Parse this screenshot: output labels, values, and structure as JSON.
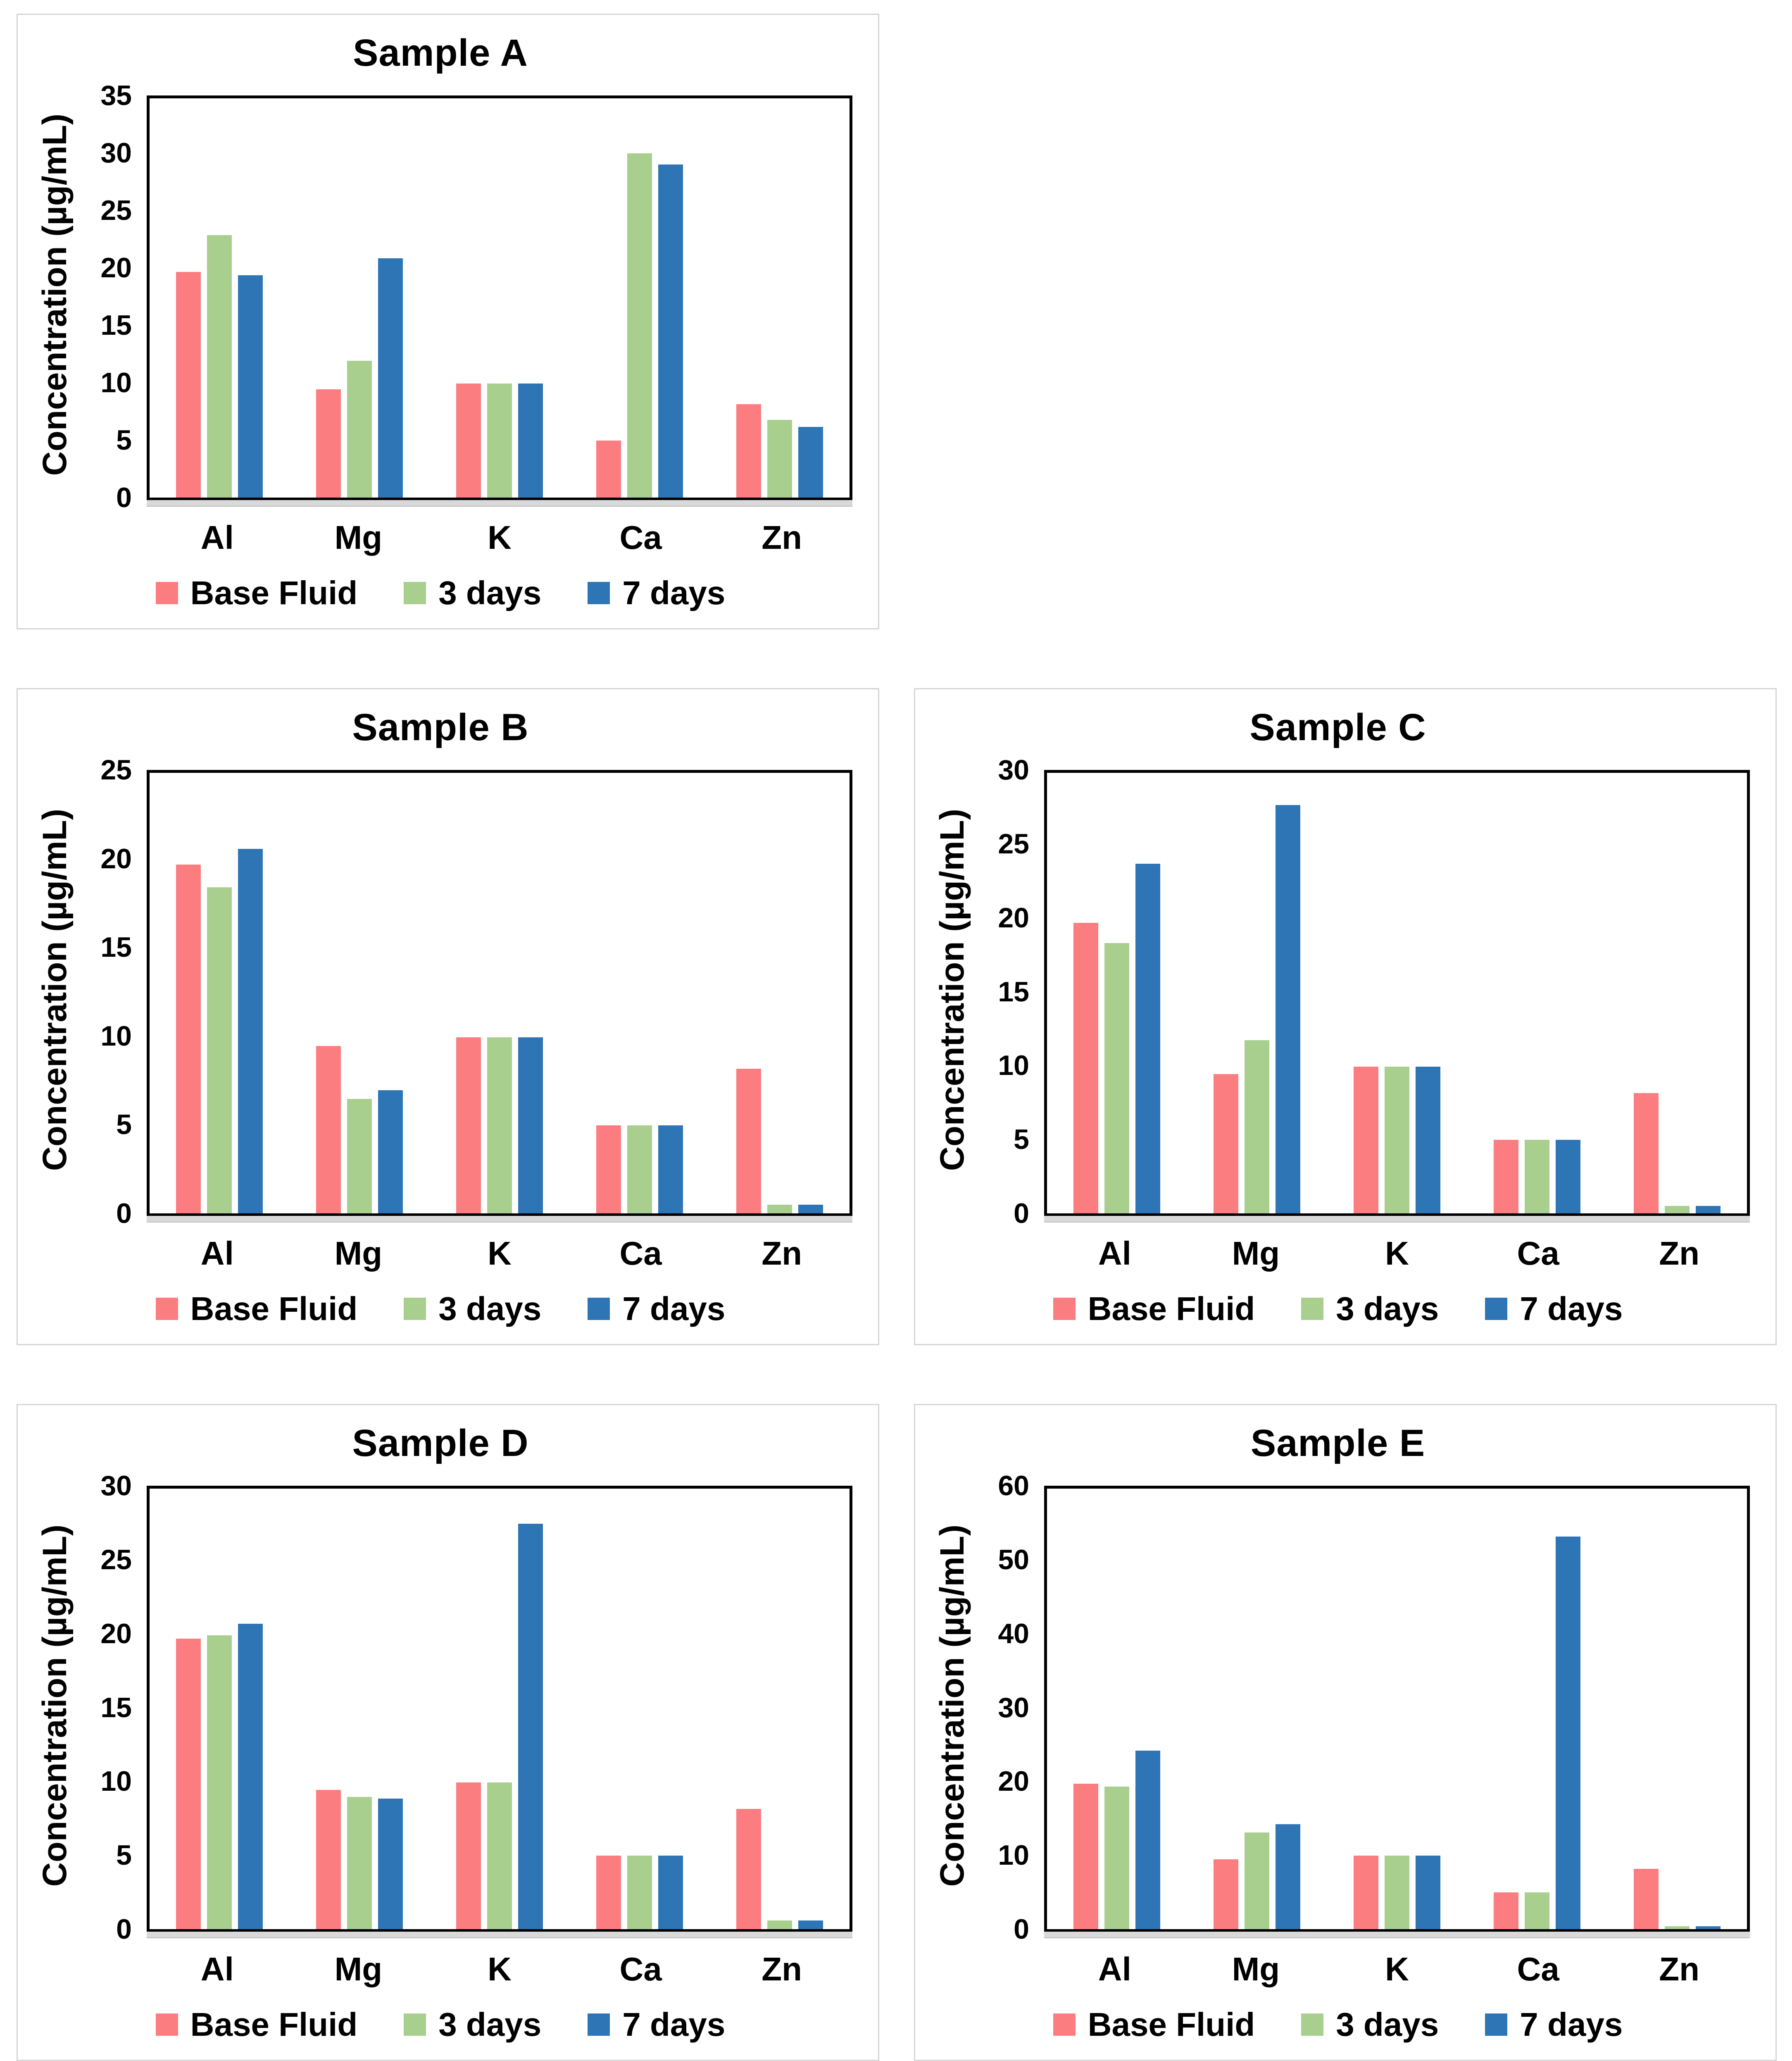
{
  "figure_title": "",
  "colors": {
    "base_fluid": "#FB7D80",
    "three_days": "#A8CF8E",
    "seven_days": "#2E75B5",
    "axis": "#000000",
    "axis_strip": "#D9D9D9",
    "panel_border": "#D5D5D5"
  },
  "chart_data": [
    {
      "type": "bar",
      "title": "Sample A",
      "ylabel": "Concentration (µg/mL)",
      "xlabel": "",
      "categories": [
        "Al",
        "Mg",
        "K",
        "Ca",
        "Zn"
      ],
      "ylim": [
        0,
        35
      ],
      "ytick_step": 5,
      "grid": false,
      "legend_position": "bottom",
      "series": [
        {
          "name": "Base Fluid",
          "color": "#FB7D80",
          "values": [
            19.8,
            9.5,
            10,
            5,
            8.2
          ]
        },
        {
          "name": "3 days",
          "color": "#A8CF8E",
          "values": [
            23,
            12,
            10,
            30.2,
            6.8
          ]
        },
        {
          "name": "7 days",
          "color": "#2E75B5",
          "values": [
            19.5,
            21,
            10,
            29.2,
            6.2
          ]
        }
      ]
    },
    {
      "type": "bar",
      "title": "Sample B",
      "ylabel": "Concentration (µg/mL)",
      "xlabel": "",
      "categories": [
        "Al",
        "Mg",
        "K",
        "Ca",
        "Zn"
      ],
      "ylim": [
        0,
        25
      ],
      "ytick_step": 5,
      "grid": false,
      "legend_position": "bottom",
      "series": [
        {
          "name": "Base Fluid",
          "color": "#FB7D80",
          "values": [
            19.8,
            9.5,
            10,
            5,
            8.2
          ]
        },
        {
          "name": "3 days",
          "color": "#A8CF8E",
          "values": [
            18.5,
            6.5,
            10,
            5,
            0.5
          ]
        },
        {
          "name": "7 days",
          "color": "#2E75B5",
          "values": [
            20.7,
            7,
            10,
            5,
            0.5
          ]
        }
      ]
    },
    {
      "type": "bar",
      "title": "Sample C",
      "ylabel": "Concentration (µg/mL)",
      "xlabel": "",
      "categories": [
        "Al",
        "Mg",
        "K",
        "Ca",
        "Zn"
      ],
      "ylim": [
        0,
        30
      ],
      "ytick_step": 5,
      "grid": false,
      "legend_position": "bottom",
      "series": [
        {
          "name": "Base Fluid",
          "color": "#FB7D80",
          "values": [
            19.8,
            9.5,
            10,
            5,
            8.2
          ]
        },
        {
          "name": "3 days",
          "color": "#A8CF8E",
          "values": [
            18.4,
            11.8,
            10,
            5,
            0.5
          ]
        },
        {
          "name": "7 days",
          "color": "#2E75B5",
          "values": [
            23.8,
            27.8,
            10,
            5,
            0.5
          ]
        }
      ]
    },
    {
      "type": "bar",
      "title": "Sample D",
      "ylabel": "Concentration (µg/mL)",
      "xlabel": "",
      "categories": [
        "Al",
        "Mg",
        "K",
        "Ca",
        "Zn"
      ],
      "ylim": [
        0,
        30
      ],
      "ytick_step": 5,
      "grid": false,
      "legend_position": "bottom",
      "series": [
        {
          "name": "Base Fluid",
          "color": "#FB7D80",
          "values": [
            19.8,
            9.5,
            10,
            5,
            8.2
          ]
        },
        {
          "name": "3 days",
          "color": "#A8CF8E",
          "values": [
            20,
            9,
            10,
            5,
            0.6
          ]
        },
        {
          "name": "7 days",
          "color": "#2E75B5",
          "values": [
            20.8,
            8.9,
            27.6,
            5,
            0.6
          ]
        }
      ]
    },
    {
      "type": "bar",
      "title": "Sample E",
      "ylabel": "Concentration (µg/mL)",
      "xlabel": "",
      "categories": [
        "Al",
        "Mg",
        "K",
        "Ca",
        "Zn"
      ],
      "ylim": [
        0,
        60
      ],
      "ytick_step": 10,
      "grid": false,
      "legend_position": "bottom",
      "series": [
        {
          "name": "Base Fluid",
          "color": "#FB7D80",
          "values": [
            19.8,
            9.5,
            10,
            5,
            8.2
          ]
        },
        {
          "name": "3 days",
          "color": "#A8CF8E",
          "values": [
            19.4,
            13.2,
            10,
            5,
            0.4
          ]
        },
        {
          "name": "7 days",
          "color": "#2E75B5",
          "values": [
            24.3,
            14.3,
            10,
            53.5,
            0.4
          ]
        }
      ]
    }
  ]
}
